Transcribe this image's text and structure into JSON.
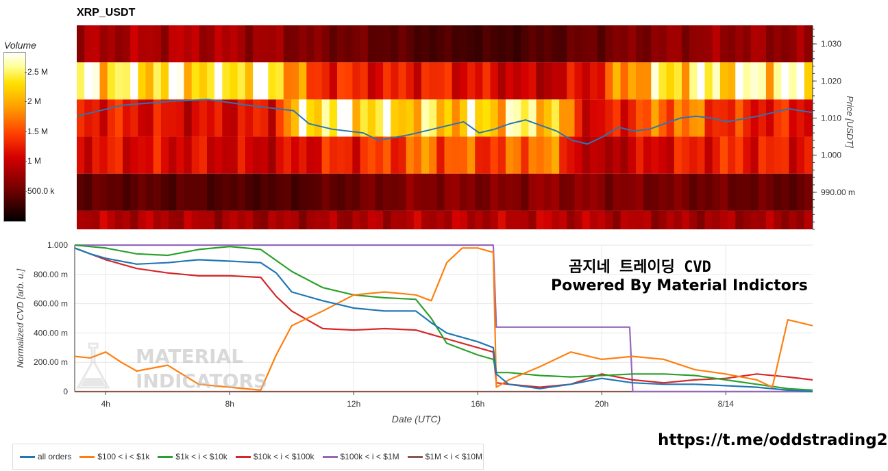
{
  "title": "XRP_USDT",
  "colorbar": {
    "title": "Volume",
    "ticks": [
      {
        "label": "2.5 M",
        "value": 2500000
      },
      {
        "label": "2 M",
        "value": 2000000
      },
      {
        "label": "1.5 M",
        "value": 1500000
      },
      {
        "label": "1 M",
        "value": 1000000
      },
      {
        "label": "500.0 k",
        "value": 500000
      }
    ],
    "max": 2830000
  },
  "overlay": {
    "line1": "곰지네 트레이딩 CVD",
    "line2": "Powered By Material Indictors",
    "watermark_line1": "MATERIAL",
    "watermark_line2": "INDICATORS",
    "link": "https://t.me/oddstrading2"
  },
  "chart_data": [
    {
      "type": "heatmap",
      "title": "XRP_USDT",
      "ylabel": "Price [USDT]",
      "ylim": [
        0.98,
        1.035
      ],
      "y_ticks": [
        {
          "label": "990.00 m",
          "value": 0.99
        },
        {
          "label": "1.000",
          "value": 1.0
        },
        {
          "label": "1.010",
          "value": 1.01
        },
        {
          "label": "1.020",
          "value": 1.02
        },
        {
          "label": "1.030",
          "value": 1.03
        }
      ],
      "price_bins": [
        0.98,
        0.985,
        0.995,
        1.005,
        1.015,
        1.025,
        1.035
      ],
      "band_volume_keyframes": {
        "x": [
          0,
          15,
          25,
          30,
          40,
          45,
          55,
          60,
          67,
          72,
          78,
          85,
          95
        ],
        "bands": [
          {
            "bin": "1.025-1.035",
            "values": [
              800000,
              900000,
              750000,
              600000,
              450000,
              350000,
              300000,
              380000,
              500000,
              600000,
              700000,
              750000,
              700000
            ]
          },
          {
            "bin": "1.015-1.025",
            "values": [
              2500000,
              2400000,
              2600000,
              1400000,
              1200000,
              1300000,
              1100000,
              900000,
              1200000,
              2000000,
              2400000,
              2500000,
              2600000
            ]
          },
          {
            "bin": "1.005-1.015",
            "values": [
              1300000,
              1100000,
              1200000,
              2600000,
              2400000,
              2200000,
              2300000,
              2500000,
              1000000,
              1400000,
              1800000,
              1300000,
              1200000
            ]
          },
          {
            "bin": "0.995-1.005",
            "values": [
              1200000,
              1100000,
              1000000,
              1200000,
              1400000,
              1700000,
              1400000,
              1900000,
              800000,
              1000000,
              1200000,
              1300000,
              1200000
            ]
          },
          {
            "bin": "0.985-0.995",
            "values": [
              450000,
              400000,
              350000,
              400000,
              550000,
              650000,
              600000,
              700000,
              650000,
              600000,
              550000,
              500000,
              450000
            ]
          },
          {
            "bin": "0.98-0.985",
            "values": [
              900000,
              850000,
              800000,
              800000,
              850000,
              900000,
              900000,
              950000,
              900000,
              850000,
              800000,
              800000,
              800000
            ]
          }
        ]
      },
      "price_line": {
        "x": [
          0,
          6,
          12,
          17,
          22,
          28,
          30,
          33,
          37,
          39,
          43,
          46,
          50,
          52,
          54,
          56,
          58,
          60,
          62,
          64,
          66,
          68,
          70,
          72,
          74,
          76,
          78,
          80,
          82,
          84,
          88,
          90,
          92,
          95
        ],
        "y": [
          1.0105,
          1.0135,
          1.0145,
          1.015,
          1.0135,
          1.012,
          1.0085,
          1.007,
          1.006,
          1.004,
          1.0055,
          1.007,
          1.009,
          1.006,
          1.007,
          1.0085,
          1.0095,
          1.008,
          1.0065,
          1.004,
          1.003,
          1.005,
          1.0075,
          1.0065,
          1.007,
          1.0085,
          1.01,
          1.0105,
          1.01,
          1.009,
          1.0105,
          1.0115,
          1.0125,
          1.0115
        ]
      },
      "price_line_color": "#2e74b5"
    },
    {
      "type": "line",
      "xlabel": "Date (UTC)",
      "ylabel": "Normalized CVD [arb. u.]",
      "xlim": [
        3.0,
        26.8
      ],
      "ylim": [
        0,
        1.0
      ],
      "x_ticks": [
        {
          "label": "4h",
          "value": 4
        },
        {
          "label": "8h",
          "value": 8
        },
        {
          "label": "12h",
          "value": 12
        },
        {
          "label": "16h",
          "value": 16
        },
        {
          "label": "20h",
          "value": 20
        },
        {
          "label": "8/14",
          "value": 24
        }
      ],
      "y_ticks": [
        {
          "label": "0",
          "value": 0
        },
        {
          "label": "200.00 m",
          "value": 0.2
        },
        {
          "label": "400.00 m",
          "value": 0.4
        },
        {
          "label": "600.00 m",
          "value": 0.6
        },
        {
          "label": "800.00 m",
          "value": 0.8
        },
        {
          "label": "1.000",
          "value": 1.0
        }
      ],
      "grid": true,
      "legend_position": "bottom-left",
      "series": [
        {
          "name": "all orders",
          "color": "#1f77b4",
          "x": [
            3.0,
            3.5,
            4.0,
            5.0,
            6.0,
            7.0,
            8.0,
            9.0,
            9.5,
            10.0,
            11.0,
            12.0,
            13.0,
            14.0,
            14.5,
            15.0,
            16.0,
            16.5,
            16.6,
            17.0,
            18.0,
            19.0,
            20.0,
            21.0,
            22.0,
            23.0,
            24.0,
            25.0,
            26.0,
            26.8
          ],
          "y": [
            0.98,
            0.94,
            0.91,
            0.87,
            0.88,
            0.9,
            0.89,
            0.88,
            0.81,
            0.68,
            0.62,
            0.57,
            0.55,
            0.55,
            0.47,
            0.4,
            0.34,
            0.3,
            0.12,
            0.05,
            0.02,
            0.05,
            0.09,
            0.06,
            0.05,
            0.05,
            0.04,
            0.03,
            0.01,
            0.0
          ]
        },
        {
          "name": "$100 < i < $1k",
          "color": "#ff7f0e",
          "x": [
            3.0,
            3.5,
            4.0,
            4.5,
            5.0,
            6.0,
            7.0,
            8.0,
            9.0,
            9.5,
            10.0,
            11.0,
            12.0,
            13.0,
            14.0,
            14.5,
            15.0,
            15.5,
            16.0,
            16.5,
            16.6,
            17.0,
            18.0,
            19.0,
            20.0,
            21.0,
            22.0,
            23.0,
            24.0,
            25.0,
            25.5,
            26.0,
            26.8
          ],
          "y": [
            0.24,
            0.23,
            0.27,
            0.2,
            0.14,
            0.18,
            0.05,
            0.03,
            0.01,
            0.25,
            0.45,
            0.55,
            0.66,
            0.68,
            0.66,
            0.62,
            0.88,
            0.98,
            0.98,
            0.95,
            0.03,
            0.08,
            0.17,
            0.27,
            0.22,
            0.24,
            0.22,
            0.15,
            0.12,
            0.08,
            0.03,
            0.49,
            0.45
          ]
        },
        {
          "name": "$1k < i < $10k",
          "color": "#2ca02c",
          "x": [
            3.0,
            4.0,
            5.0,
            6.0,
            7.0,
            8.0,
            9.0,
            10.0,
            11.0,
            12.0,
            13.0,
            14.0,
            14.5,
            15.0,
            16.0,
            16.5,
            16.6,
            17.0,
            18.0,
            19.0,
            20.0,
            21.0,
            22.0,
            23.0,
            24.0,
            25.0,
            26.0,
            26.8
          ],
          "y": [
            1.0,
            0.98,
            0.94,
            0.93,
            0.97,
            0.99,
            0.97,
            0.82,
            0.71,
            0.66,
            0.64,
            0.63,
            0.5,
            0.33,
            0.25,
            0.22,
            0.13,
            0.13,
            0.11,
            0.1,
            0.11,
            0.12,
            0.12,
            0.11,
            0.08,
            0.05,
            0.02,
            0.01
          ]
        },
        {
          "name": "$10k < i < $100k",
          "color": "#d62728",
          "x": [
            3.0,
            3.5,
            4.0,
            5.0,
            6.0,
            7.0,
            8.0,
            9.0,
            9.5,
            10.0,
            11.0,
            12.0,
            13.0,
            14.0,
            15.0,
            16.0,
            16.5,
            16.6,
            17.0,
            18.0,
            19.0,
            20.0,
            21.0,
            22.0,
            23.0,
            24.0,
            25.0,
            26.0,
            26.8
          ],
          "y": [
            0.98,
            0.94,
            0.9,
            0.84,
            0.81,
            0.79,
            0.79,
            0.78,
            0.65,
            0.55,
            0.43,
            0.42,
            0.43,
            0.42,
            0.36,
            0.3,
            0.27,
            0.06,
            0.05,
            0.03,
            0.05,
            0.12,
            0.08,
            0.06,
            0.08,
            0.09,
            0.12,
            0.1,
            0.08
          ]
        },
        {
          "name": "$100k < i < $1M",
          "color": "#9467bd",
          "x": [
            3.0,
            16.5,
            16.6,
            20.9,
            21.0,
            26.8
          ],
          "y": [
            1.0,
            1.0,
            0.44,
            0.44,
            0.0,
            0.0
          ]
        },
        {
          "name": "$1M < i < $10M",
          "color": "#8c564b",
          "x": [
            3.0,
            26.8
          ],
          "y": [
            0.0,
            0.0
          ]
        }
      ]
    }
  ]
}
